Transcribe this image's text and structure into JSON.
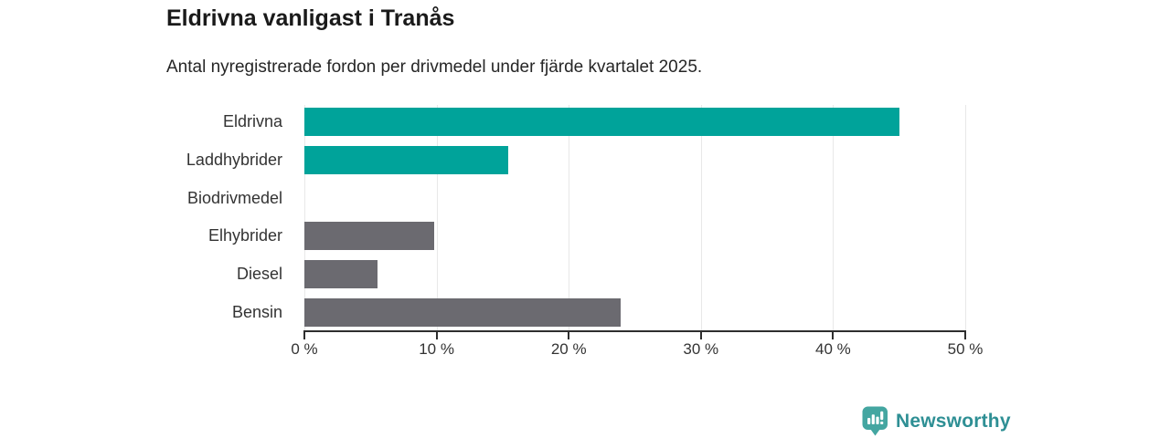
{
  "header": {
    "title": "Eldrivna vanligast i Tranås",
    "subtitle": "Antal nyregistrerade fordon per drivmedel under fjärde kvartalet 2025."
  },
  "chart_data": {
    "type": "bar",
    "orientation": "horizontal",
    "title": "Eldrivna vanligast i Tranås",
    "subtitle": "Antal nyregistrerade fordon per drivmedel under fjärde kvartalet 2025.",
    "categories": [
      "Eldrivna",
      "Laddhybrider",
      "Biodrivmedel",
      "Elhybrider",
      "Diesel",
      "Bensin"
    ],
    "values": [
      45,
      15.4,
      0,
      9.8,
      5.5,
      23.9
    ],
    "unit": "%",
    "bar_colors": [
      "#00a39a",
      "#00a39a",
      "#6b6a70",
      "#6b6a70",
      "#6b6a70",
      "#6b6a70"
    ],
    "highlight_color": "#00a39a",
    "default_color": "#6b6a70",
    "xlim": [
      0,
      50
    ],
    "x_tick_values": [
      0,
      10,
      20,
      30,
      40,
      50
    ],
    "x_ticks": [
      "0 %",
      "10 %",
      "20 %",
      "30 %",
      "40 %",
      "50 %"
    ],
    "grid": true,
    "grid_color": "#e8e8e8",
    "axis_color": "#2e2e2e"
  },
  "footer": {
    "brand": "Newsworthy",
    "brand_color": "#2e8f94",
    "logo_color": "#44a6a1"
  }
}
